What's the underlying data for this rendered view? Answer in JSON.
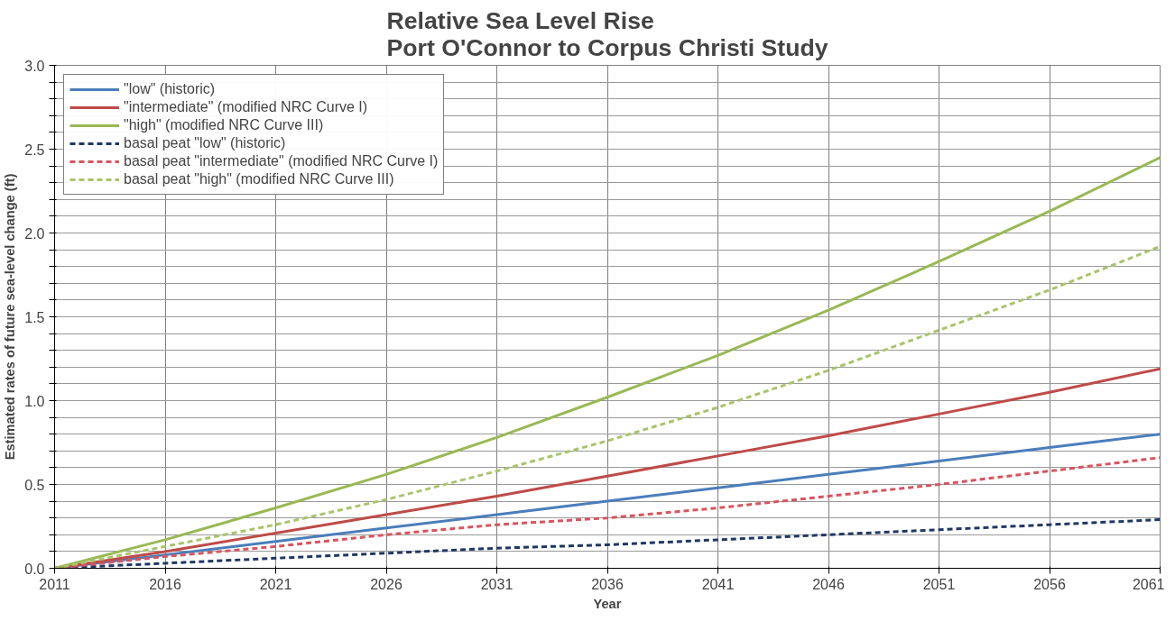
{
  "chart_data": {
    "type": "line",
    "title": "Relative Sea Level Rise\nPort O'Connor to Corpus Christi Study",
    "xlabel": "Year",
    "ylabel": "Estimated rates of future sea-level change (ft)",
    "x": [
      2011,
      2016,
      2021,
      2026,
      2031,
      2036,
      2041,
      2046,
      2051,
      2056,
      2061
    ],
    "xlim": [
      2011,
      2061
    ],
    "xticks": [
      2011,
      2016,
      2021,
      2026,
      2031,
      2036,
      2041,
      2046,
      2051,
      2056,
      2061
    ],
    "ylim": [
      0,
      3
    ],
    "yticks": [
      {
        "value": 0,
        "label": "0.0"
      },
      {
        "value": 0.1,
        "label": null
      },
      {
        "value": 0.2,
        "label": null
      },
      {
        "value": 0.3,
        "label": null
      },
      {
        "value": 0.4,
        "label": null
      },
      {
        "value": 0.5,
        "label": "0.5"
      },
      {
        "value": 0.6,
        "label": null
      },
      {
        "value": 0.7,
        "label": null
      },
      {
        "value": 0.8,
        "label": null
      },
      {
        "value": 0.9,
        "label": null
      },
      {
        "value": 1,
        "label": "1.0"
      },
      {
        "value": 1.1,
        "label": null
      },
      {
        "value": 1.2,
        "label": null
      },
      {
        "value": 1.3,
        "label": null
      },
      {
        "value": 1.4,
        "label": null
      },
      {
        "value": 1.5,
        "label": "1.5"
      },
      {
        "value": 1.6,
        "label": null
      },
      {
        "value": 1.7,
        "label": null
      },
      {
        "value": 1.8,
        "label": null
      },
      {
        "value": 1.9,
        "label": null
      },
      {
        "value": 2,
        "label": "2.0"
      },
      {
        "value": 2.1,
        "label": null
      },
      {
        "value": 2.2,
        "label": null
      },
      {
        "value": 2.3,
        "label": null
      },
      {
        "value": 2.4,
        "label": null
      },
      {
        "value": 2.5,
        "label": "2.5"
      },
      {
        "value": 2.6,
        "label": null
      },
      {
        "value": 2.7,
        "label": null
      },
      {
        "value": 2.8,
        "label": null
      },
      {
        "value": 2.9,
        "label": null
      },
      {
        "value": 3,
        "label": "3.0"
      }
    ],
    "grid": true,
    "legend": "top left",
    "marker": "none",
    "series": [
      {
        "name": "\"low\" (historic)",
        "color": "#4a7ebb",
        "line_style": "solid",
        "values": [
          0,
          0.08,
          0.16,
          0.24,
          0.32,
          0.4,
          0.48,
          0.56,
          0.64,
          0.72,
          0.8
        ]
      },
      {
        "name": "\"intermediate\" (modified NRC Curve I)",
        "color": "#be4b48",
        "line_style": "solid",
        "values": [
          0,
          0.1,
          0.21,
          0.32,
          0.43,
          0.55,
          0.67,
          0.79,
          0.92,
          1.05,
          1.19
        ]
      },
      {
        "name": "\"high\" (modified NRC Curve III)",
        "color": "#98b954",
        "line_style": "solid",
        "values": [
          0,
          0.17,
          0.36,
          0.56,
          0.78,
          1.02,
          1.27,
          1.54,
          1.83,
          2.13,
          2.45
        ]
      },
      {
        "name": "basal peat \"low\" (historic)",
        "color": "#1f3864",
        "line_style": "dashed",
        "values": [
          0,
          0.03,
          0.06,
          0.09,
          0.12,
          0.14,
          0.17,
          0.2,
          0.23,
          0.26,
          0.29
        ]
      },
      {
        "name": "basal peat \"intermediate\" (modified NRC Curve I)",
        "color": "#d9535f",
        "line_style": "dashed",
        "values": [
          0,
          0.07,
          0.13,
          0.2,
          0.26,
          0.3,
          0.36,
          0.43,
          0.5,
          0.58,
          0.66
        ]
      },
      {
        "name": "basal peat \"high\" (modified NRC Curve III)",
        "color": "#a9c46a",
        "line_style": "dashed",
        "values": [
          0,
          0.13,
          0.26,
          0.41,
          0.58,
          0.76,
          0.96,
          1.18,
          1.42,
          1.66,
          1.92
        ]
      }
    ]
  }
}
